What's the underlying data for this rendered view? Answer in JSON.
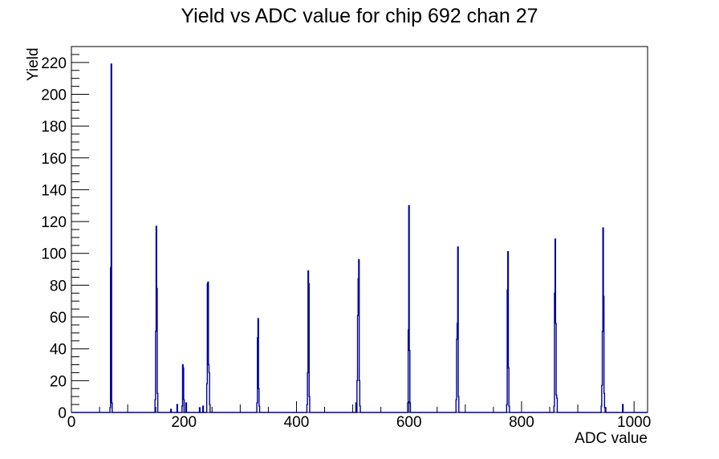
{
  "chart_data": {
    "type": "bar",
    "title": "Yield vs ADC value for chip 692 chan 27",
    "xlabel": "ADC value",
    "ylabel": "Yield",
    "xlim": [
      0,
      1024
    ],
    "ylim": [
      0,
      230
    ],
    "grid": false,
    "legend": "none",
    "line_color": "#000099",
    "axis_color": "#000000",
    "x_ticks": {
      "labels": [
        0,
        200,
        400,
        600,
        800,
        1000
      ],
      "label_step": 200,
      "medium_step": 100,
      "minor_step": 50
    },
    "y_ticks": {
      "labels": [
        0,
        20,
        40,
        60,
        80,
        100,
        120,
        140,
        160,
        180,
        200,
        220
      ],
      "label_step": 20,
      "minor_step": 5
    },
    "bin_width_adc": 1,
    "bins": [
      [
        69,
        3
      ],
      [
        70,
        91
      ],
      [
        71,
        219
      ],
      [
        72,
        6
      ],
      [
        149,
        8
      ],
      [
        150,
        51
      ],
      [
        151,
        117
      ],
      [
        152,
        78
      ],
      [
        153,
        12
      ],
      [
        177,
        2
      ],
      [
        188,
        5
      ],
      [
        197,
        4
      ],
      [
        198,
        30
      ],
      [
        199,
        28
      ],
      [
        200,
        8
      ],
      [
        204,
        6
      ],
      [
        228,
        3
      ],
      [
        234,
        4
      ],
      [
        241,
        18
      ],
      [
        242,
        81
      ],
      [
        243,
        82
      ],
      [
        244,
        30
      ],
      [
        245,
        25
      ],
      [
        246,
        5
      ],
      [
        330,
        6
      ],
      [
        331,
        47
      ],
      [
        332,
        59
      ],
      [
        333,
        15
      ],
      [
        334,
        4
      ],
      [
        419,
        5
      ],
      [
        420,
        25
      ],
      [
        421,
        89
      ],
      [
        422,
        81
      ],
      [
        423,
        10
      ],
      [
        506,
        6
      ],
      [
        508,
        20
      ],
      [
        509,
        61
      ],
      [
        510,
        84
      ],
      [
        511,
        96
      ],
      [
        512,
        20
      ],
      [
        513,
        4
      ],
      [
        598,
        6
      ],
      [
        599,
        52
      ],
      [
        600,
        130
      ],
      [
        601,
        39
      ],
      [
        602,
        6
      ],
      [
        684,
        8
      ],
      [
        685,
        46
      ],
      [
        686,
        56
      ],
      [
        687,
        104
      ],
      [
        688,
        10
      ],
      [
        774,
        5
      ],
      [
        775,
        77
      ],
      [
        776,
        101
      ],
      [
        777,
        28
      ],
      [
        778,
        4
      ],
      [
        858,
        4
      ],
      [
        859,
        75
      ],
      [
        860,
        109
      ],
      [
        861,
        56
      ],
      [
        862,
        11
      ],
      [
        863,
        9
      ],
      [
        942,
        4
      ],
      [
        943,
        17
      ],
      [
        944,
        51
      ],
      [
        945,
        116
      ],
      [
        946,
        73
      ],
      [
        947,
        12
      ],
      [
        948,
        3
      ],
      [
        980,
        5
      ]
    ]
  }
}
